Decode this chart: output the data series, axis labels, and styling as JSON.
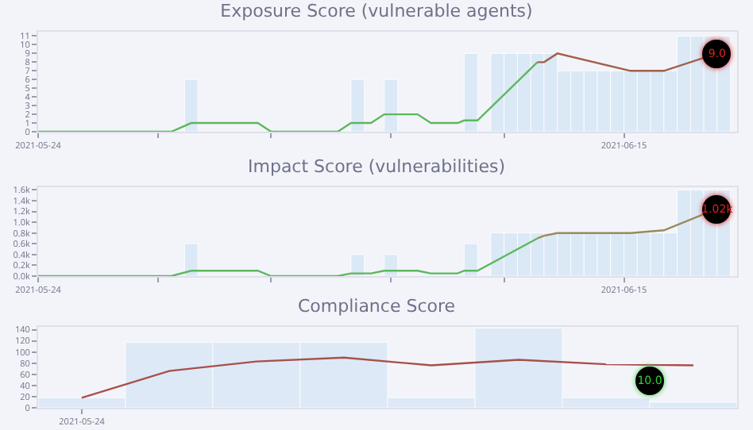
{
  "chart_data": [
    {
      "type": "line",
      "title": "Exposure Score (vulnerable agents)",
      "xlim": [
        "2021-05-24",
        "2021-06-19T06:00"
      ],
      "xticks": [
        "2021-05-24",
        {
          "value": "2021-05-28T12:00",
          "label": null
        },
        {
          "value": "2021-06-01T18:00",
          "label": null
        },
        {
          "value": "2021-06-06T06:00",
          "label": null
        },
        {
          "value": "2021-06-10T12:00",
          "label": null
        },
        "2021-06-15"
      ],
      "ylim": [
        0,
        11.5
      ],
      "yticks": [
        0,
        1,
        2,
        3,
        4,
        5,
        6,
        7,
        8,
        9,
        10,
        11
      ],
      "annotations": [
        {
          "text": "9.0",
          "x": "2021-06-18T12:00",
          "y": 9
        }
      ],
      "series": [
        {
          "type": "bar",
          "color": "#dbe8f6",
          "x": [
            "2021-05-29T18:00",
            "2021-06-05T00:00",
            "2021-06-06T06:00",
            "2021-06-09T06:00",
            "2021-06-10T06:00",
            "2021-06-10T18:00",
            "2021-06-11T06:00",
            "2021-06-11T18:00",
            "2021-06-12T06:00",
            "2021-06-12T18:00",
            "2021-06-13T06:00",
            "2021-06-13T18:00",
            "2021-06-14T06:00",
            "2021-06-14T18:00",
            "2021-06-15T06:00",
            "2021-06-15T18:00",
            "2021-06-16T06:00",
            "2021-06-16T18:00",
            "2021-06-17T06:00",
            "2021-06-17T18:00",
            "2021-06-18T06:00",
            "2021-06-18T18:00"
          ],
          "values": [
            6,
            6,
            6,
            9,
            9,
            9,
            9,
            9,
            9,
            7,
            7,
            7,
            7,
            7,
            7,
            7,
            7,
            7,
            11,
            11,
            11,
            11
          ]
        },
        {
          "color": "#5cb85c",
          "x": [
            "2021-05-24",
            "2021-05-29T00:00",
            "2021-05-29T18:00",
            "2021-06-01T06:00",
            "2021-06-01T18:00",
            "2021-06-04T06:00",
            "2021-06-04T18:00",
            "2021-06-05T12:00",
            "2021-06-06T00:00",
            "2021-06-07T06:00",
            "2021-06-07T18:00",
            "2021-06-08T18:00",
            "2021-06-09T00:00",
            "2021-06-09T12:00",
            "2021-06-11T18:00"
          ],
          "values": [
            0,
            0,
            1,
            1,
            0,
            0,
            1,
            1,
            2,
            2,
            1,
            1,
            1.3,
            1.3,
            8
          ]
        },
        {
          "color": "#a0604a",
          "x": [
            "2021-06-11T18:00",
            "2021-06-12T00:00",
            "2021-06-12T12:00",
            "2021-06-15T06:00",
            "2021-06-16T12:00",
            "2021-06-18T12:00"
          ],
          "values": [
            8,
            8,
            9,
            7,
            7,
            9
          ]
        }
      ]
    },
    {
      "type": "line",
      "title": "Impact Score (vulnerabilities)",
      "xlim": [
        "2021-05-24",
        "2021-06-19T06:00"
      ],
      "xticks": [
        "2021-05-24",
        {
          "value": "2021-05-28T12:00",
          "label": null
        },
        {
          "value": "2021-06-01T18:00",
          "label": null
        },
        {
          "value": "2021-06-06T06:00",
          "label": null
        },
        {
          "value": "2021-06-10T12:00",
          "label": null
        },
        "2021-06-15"
      ],
      "ylim": [
        0,
        1650
      ],
      "yticks": [
        {
          "value": 0,
          "label": "0.0k"
        },
        {
          "value": 200,
          "label": "0.2k"
        },
        {
          "value": 400,
          "label": "0.4k"
        },
        {
          "value": 600,
          "label": "0.6k"
        },
        {
          "value": 800,
          "label": "0.8k"
        },
        {
          "value": 1000,
          "label": "1.0k"
        },
        {
          "value": 1200,
          "label": "1.2k"
        },
        {
          "value": 1400,
          "label": "1.4k"
        },
        {
          "value": 1600,
          "label": "1.6k"
        }
      ],
      "annotations": [
        {
          "text": "1.02k",
          "x": "2021-06-18T12:00",
          "y": 1250
        }
      ],
      "series": [
        {
          "type": "bar",
          "color": "#dbe8f6",
          "x": [
            "2021-05-29T18:00",
            "2021-06-05T00:00",
            "2021-06-06T06:00",
            "2021-06-09T06:00",
            "2021-06-10T06:00",
            "2021-06-10T18:00",
            "2021-06-11T06:00",
            "2021-06-11T18:00",
            "2021-06-12T06:00",
            "2021-06-12T18:00",
            "2021-06-13T06:00",
            "2021-06-13T18:00",
            "2021-06-14T06:00",
            "2021-06-14T18:00",
            "2021-06-15T06:00",
            "2021-06-15T18:00",
            "2021-06-16T06:00",
            "2021-06-16T18:00",
            "2021-06-17T06:00",
            "2021-06-17T18:00",
            "2021-06-18T06:00",
            "2021-06-18T18:00"
          ],
          "values": [
            600,
            400,
            400,
            600,
            800,
            800,
            800,
            800,
            800,
            800,
            800,
            800,
            800,
            800,
            800,
            800,
            800,
            800,
            1600,
            1600,
            1600,
            1600
          ]
        },
        {
          "color": "#5cb85c",
          "x": [
            "2021-05-24",
            "2021-05-29T00:00",
            "2021-05-29T18:00",
            "2021-06-01T06:00",
            "2021-06-01T18:00",
            "2021-06-04T06:00",
            "2021-06-04T18:00",
            "2021-06-05T12:00",
            "2021-06-06T00:00",
            "2021-06-07T06:00",
            "2021-06-07T18:00",
            "2021-06-08T18:00",
            "2021-06-09T00:00",
            "2021-06-09T12:00",
            "2021-06-11T18:00"
          ],
          "values": [
            0,
            0,
            100,
            100,
            0,
            0,
            50,
            50,
            100,
            100,
            50,
            50,
            100,
            100,
            700
          ]
        },
        {
          "color": "#9a8a5a",
          "x": [
            "2021-06-11T18:00",
            "2021-06-12T00:00",
            "2021-06-12T12:00",
            "2021-06-15T06:00",
            "2021-06-16T12:00",
            "2021-06-18T12:00"
          ],
          "values": [
            700,
            750,
            800,
            800,
            850,
            1250
          ]
        }
      ]
    },
    {
      "type": "bar",
      "title": "Compliance Score",
      "categories": [
        "2021-05-24",
        null,
        null,
        null,
        null,
        null,
        null,
        null
      ],
      "ylim": [
        0,
        145
      ],
      "yticks": [
        0,
        20,
        40,
        60,
        80,
        100,
        120,
        140
      ],
      "annotations": [
        {
          "text": "10.0",
          "y": 47
        }
      ],
      "series": [
        {
          "color": "#dde9f6",
          "values": [
            18,
            117,
            117,
            117,
            18,
            143,
            18,
            10
          ]
        },
        {
          "type": "line",
          "color": "#a8504a",
          "values": [
            18,
            66,
            83,
            90,
            76,
            86,
            78,
            76
          ]
        }
      ]
    }
  ]
}
